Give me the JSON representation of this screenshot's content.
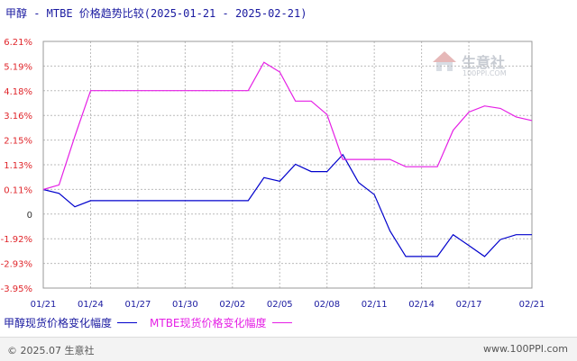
{
  "title": "甲醇 - MTBE 价格趋势比较(2025-01-21 - 2025-02-21)",
  "watermark": {
    "text": "生意社",
    "sub": "100PPI.COM"
  },
  "footer": {
    "left": "© 2025.07 生意社",
    "right": "www.100PPI.com"
  },
  "colors": {
    "methanol": "#0000cc",
    "mtbe": "#e51fe5",
    "ytick": "#e0262b",
    "xtick": "#1a1aa0",
    "grid": "#bbbbbb"
  },
  "chart_data": {
    "type": "line",
    "y_ticks": [
      "6.21%",
      "5.19%",
      "4.18%",
      "3.16%",
      "2.15%",
      "1.13%",
      "0.11%",
      "0",
      "-1.92%",
      "-2.93%",
      "-3.95%"
    ],
    "ylim": [
      -3.95,
      6.21
    ],
    "x_ticks": [
      "01/21",
      "01/24",
      "01/27",
      "01/30",
      "02/02",
      "02/05",
      "02/08",
      "02/11",
      "02/14",
      "02/17",
      "02/21"
    ],
    "x": [
      "01/21",
      "01/22",
      "01/23",
      "01/24",
      "01/25",
      "01/26",
      "01/27",
      "01/28",
      "01/29",
      "01/30",
      "01/31",
      "02/01",
      "02/02",
      "02/03",
      "02/04",
      "02/05",
      "02/06",
      "02/07",
      "02/08",
      "02/09",
      "02/10",
      "02/11",
      "02/12",
      "02/13",
      "02/14",
      "02/15",
      "02/16",
      "02/17",
      "02/18",
      "02/19",
      "02/20",
      "02/21"
    ],
    "series": [
      {
        "name": "甲醇现货价格变化幅度",
        "values": [
          0.11,
          -0.05,
          -0.6,
          -0.35,
          -0.35,
          -0.35,
          -0.35,
          -0.35,
          -0.35,
          -0.35,
          -0.35,
          -0.35,
          -0.35,
          -0.35,
          0.6,
          0.45,
          1.15,
          0.85,
          0.85,
          1.55,
          0.4,
          -0.1,
          -1.6,
          -2.65,
          -2.65,
          -2.65,
          -1.75,
          -2.2,
          -2.65,
          -1.95,
          -1.75,
          -1.75
        ]
      },
      {
        "name": "MTBE现货价格变化幅度",
        "values": [
          0.11,
          0.3,
          2.3,
          4.18,
          4.18,
          4.18,
          4.18,
          4.18,
          4.18,
          4.18,
          4.18,
          4.18,
          4.18,
          4.18,
          5.35,
          4.95,
          3.75,
          3.75,
          3.2,
          1.35,
          1.35,
          1.35,
          1.35,
          1.05,
          1.05,
          1.05,
          2.55,
          3.3,
          3.55,
          3.45,
          3.1,
          2.95
        ]
      }
    ]
  }
}
